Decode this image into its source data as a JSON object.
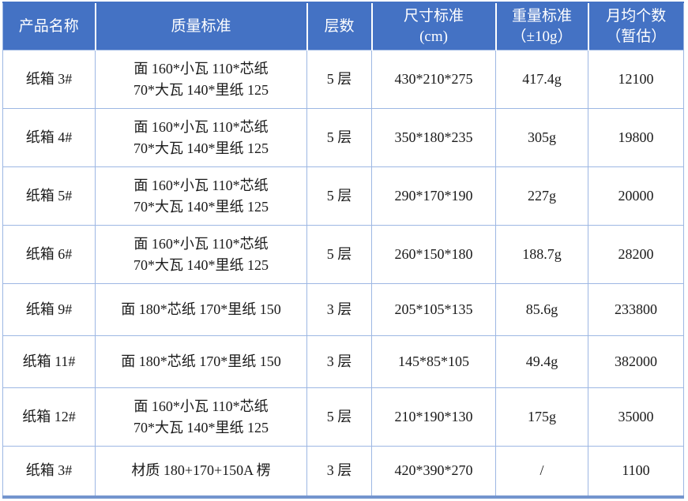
{
  "colors": {
    "header_bg": "#4472C4",
    "header_text": "#FFFFFF",
    "grid_line": "#9DB7E3",
    "outer_bottom_border": "#7495CE",
    "body_text": "#1A1A1A"
  },
  "table": {
    "headers": [
      {
        "label": "产品名称"
      },
      {
        "label": "质量标准"
      },
      {
        "label": "层数"
      },
      {
        "label": "尺寸标准\n(cm)"
      },
      {
        "label": "重量标准\n（±10g）"
      },
      {
        "label": "月均个数\n（暂估）"
      }
    ],
    "rows": [
      {
        "product": "纸箱 3#",
        "quality": "面 160*小瓦 110*芯纸\n70*大瓦 140*里纸 125",
        "layers": "5 层",
        "size": "430*210*275",
        "weight": "417.4g",
        "monthly": "12100"
      },
      {
        "product": "纸箱 4#",
        "quality": "面 160*小瓦 110*芯纸\n70*大瓦 140*里纸 125",
        "layers": "5 层",
        "size": "350*180*235",
        "weight": "305g",
        "monthly": "19800"
      },
      {
        "product": "纸箱 5#",
        "quality": "面 160*小瓦 110*芯纸\n70*大瓦 140*里纸 125",
        "layers": "5 层",
        "size": "290*170*190",
        "weight": "227g",
        "monthly": "20000"
      },
      {
        "product": "纸箱 6#",
        "quality": "面 160*小瓦 110*芯纸\n70*大瓦 140*里纸 125",
        "layers": "5 层",
        "size": "260*150*180",
        "weight": "188.7g",
        "monthly": "28200"
      },
      {
        "product": "纸箱 9#",
        "quality": "面 180*芯纸 170*里纸 150",
        "layers": "3 层",
        "size": "205*105*135",
        "weight": "85.6g",
        "monthly": "233800"
      },
      {
        "product": "纸箱 11#",
        "quality": "面 180*芯纸 170*里纸 150",
        "layers": "3 层",
        "size": "145*85*105",
        "weight": "49.4g",
        "monthly": "382000"
      },
      {
        "product": "纸箱 12#",
        "quality": "面 160*小瓦 110*芯纸\n70*大瓦 140*里纸 125",
        "layers": "5 层",
        "size": "210*190*130",
        "weight": "175g",
        "monthly": "35000"
      },
      {
        "product": "纸箱 3#",
        "quality": "材质 180+170+150A 楞",
        "layers": "3 层",
        "size": "420*390*270",
        "weight": "/",
        "monthly": "1100"
      }
    ]
  }
}
